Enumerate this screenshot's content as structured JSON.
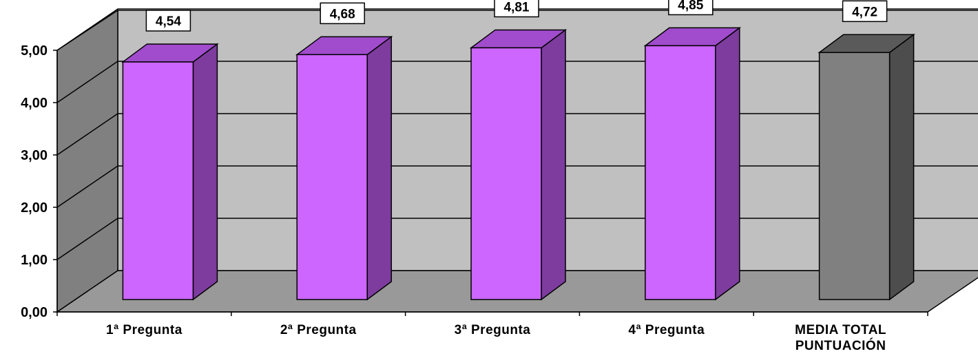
{
  "chart_data": {
    "type": "bar",
    "title": "",
    "xlabel": "",
    "ylabel": "",
    "ylim": [
      0,
      5
    ],
    "yticks": [
      "0,00",
      "1,00",
      "2,00",
      "3,00",
      "4,00",
      "5,00"
    ],
    "categories": [
      "1ª Pregunta",
      "2ª Pregunta",
      "3ª Pregunta",
      "4ª Pregunta",
      "MEDIA TOTAL PUNTUACIÓN"
    ],
    "category_lines": [
      [
        "1ª Pregunta"
      ],
      [
        "2ª Pregunta"
      ],
      [
        "3ª Pregunta"
      ],
      [
        "4ª Pregunta"
      ],
      [
        "MEDIA TOTAL",
        "PUNTUACIÓN"
      ]
    ],
    "values": [
      4.54,
      4.68,
      4.81,
      4.85,
      4.72
    ],
    "value_labels": [
      "4,54",
      "4,68",
      "4,81",
      "4,85",
      "4,72"
    ],
    "grid": true,
    "legend": "none",
    "style_3d": true,
    "colors": {
      "bar_front": [
        "#cc66ff",
        "#cc66ff",
        "#cc66ff",
        "#cc66ff",
        "#808080"
      ],
      "bar_top": [
        "#a04ccc",
        "#a04ccc",
        "#a04ccc",
        "#a04ccc",
        "#5a5a5a"
      ],
      "bar_side": [
        "#7d3c9e",
        "#7d3c9e",
        "#7d3c9e",
        "#7d3c9e",
        "#4d4d4d"
      ],
      "back_wall": "#c0c0c0",
      "side_wall": "#808080",
      "floor": "#999999"
    }
  }
}
